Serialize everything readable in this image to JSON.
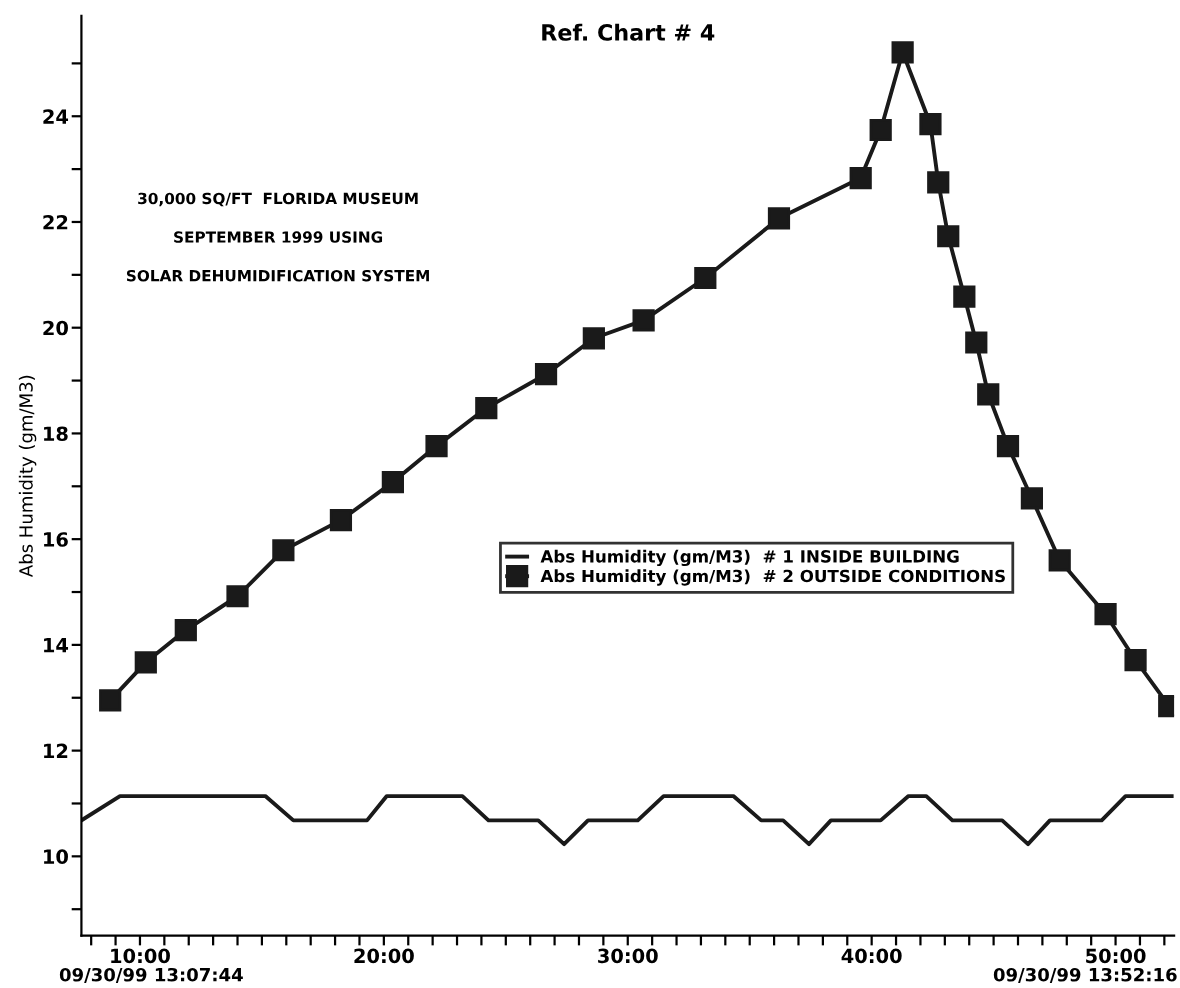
{
  "chart_data": {
    "type": "line",
    "title": "Ref. Chart # 4",
    "ylabel": "Abs Humidity (gm/M3)",
    "annotations": [
      "30,000 SQ/FT  FLORIDA MUSEUM",
      "SEPTEMBER 1999 USING",
      "SOLAR DEHUMIDIFICATION SYSTEM",
      "09/30/99 13:07:44",
      "09/30/99 13:52:16"
    ],
    "series": [
      {
        "name": "Abs Humidity (gm/M3)  # 1 INSIDE BUILDING",
        "color": "#1a1a1a",
        "marker": "none",
        "x": [
          7.6,
          9.18,
          15.14,
          16.29,
          19.31,
          20.12,
          23.22,
          24.29,
          26.33,
          27.39,
          28.37,
          30.41,
          31.47,
          34.33,
          35.47,
          36.37,
          37.43,
          38.33,
          40.37,
          41.51,
          42.24,
          43.31,
          45.35,
          46.41,
          47.31,
          49.43,
          50.41,
          52.3
        ],
        "values": [
          10.68,
          11.14,
          11.14,
          10.68,
          10.68,
          11.14,
          11.14,
          10.68,
          10.68,
          10.23,
          10.68,
          10.68,
          11.14,
          11.14,
          10.68,
          10.68,
          10.23,
          10.68,
          10.68,
          11.14,
          11.14,
          10.68,
          10.68,
          10.23,
          10.68,
          10.68,
          11.14,
          11.14
        ]
      },
      {
        "name": "Abs Humidity (gm/M3)  # 2 OUTSIDE CONDITIONS",
        "color": "#1a1a1a",
        "marker": "square",
        "x": [
          8.78,
          10.24,
          11.88,
          14.0,
          15.88,
          18.24,
          20.37,
          22.16,
          24.2,
          26.65,
          28.61,
          30.65,
          33.18,
          36.2,
          39.55,
          40.37,
          41.27,
          42.41,
          42.73,
          43.14,
          43.8,
          44.29,
          44.78,
          45.59,
          46.57,
          47.71,
          49.59,
          50.82,
          52.2
        ],
        "values": [
          12.95,
          13.67,
          14.28,
          14.92,
          15.79,
          16.36,
          17.08,
          17.76,
          18.48,
          19.12,
          19.8,
          20.14,
          20.94,
          22.07,
          22.83,
          23.74,
          25.21,
          23.85,
          22.75,
          21.73,
          20.59,
          19.72,
          18.74,
          17.76,
          16.77,
          15.6,
          14.58,
          13.71,
          12.84
        ]
      }
    ],
    "xlim": [
      7.6,
      52.4
    ],
    "ylim": [
      8.5,
      25.9
    ],
    "xticks": [
      {
        "value": 8,
        "label": null
      },
      {
        "value": 9,
        "label": null
      },
      {
        "value": 10,
        "label": "10:00"
      },
      {
        "value": 11,
        "label": null
      },
      {
        "value": 12,
        "label": null
      },
      {
        "value": 13,
        "label": null
      },
      {
        "value": 14,
        "label": null
      },
      {
        "value": 15,
        "label": null
      },
      {
        "value": 16,
        "label": null
      },
      {
        "value": 17,
        "label": null
      },
      {
        "value": 18,
        "label": null
      },
      {
        "value": 19,
        "label": null
      },
      {
        "value": 20,
        "label": "20:00"
      },
      {
        "value": 21,
        "label": null
      },
      {
        "value": 22,
        "label": null
      },
      {
        "value": 23,
        "label": null
      },
      {
        "value": 24,
        "label": null
      },
      {
        "value": 25,
        "label": null
      },
      {
        "value": 26,
        "label": null
      },
      {
        "value": 27,
        "label": null
      },
      {
        "value": 28,
        "label": null
      },
      {
        "value": 29,
        "label": null
      },
      {
        "value": 30,
        "label": "30:00"
      },
      {
        "value": 31,
        "label": null
      },
      {
        "value": 32,
        "label": null
      },
      {
        "value": 33,
        "label": null
      },
      {
        "value": 34,
        "label": null
      },
      {
        "value": 35,
        "label": null
      },
      {
        "value": 36,
        "label": null
      },
      {
        "value": 37,
        "label": null
      },
      {
        "value": 38,
        "label": null
      },
      {
        "value": 39,
        "label": null
      },
      {
        "value": 40,
        "label": "40:00"
      },
      {
        "value": 41,
        "label": null
      },
      {
        "value": 42,
        "label": null
      },
      {
        "value": 43,
        "label": null
      },
      {
        "value": 44,
        "label": null
      },
      {
        "value": 45,
        "label": null
      },
      {
        "value": 46,
        "label": null
      },
      {
        "value": 47,
        "label": null
      },
      {
        "value": 48,
        "label": null
      },
      {
        "value": 49,
        "label": null
      },
      {
        "value": 50,
        "label": "50:00"
      },
      {
        "value": 51,
        "label": null
      },
      {
        "value": 52,
        "label": null
      }
    ],
    "yticks": [
      {
        "value": 9,
        "label": null
      },
      10,
      {
        "value": 11,
        "label": null
      },
      12,
      {
        "value": 13,
        "label": null
      },
      14,
      {
        "value": 15,
        "label": null
      },
      16,
      {
        "value": 17,
        "label": null
      },
      18,
      {
        "value": 19,
        "label": null
      },
      20,
      {
        "value": 21,
        "label": null
      },
      22,
      {
        "value": 23,
        "label": null
      },
      24,
      {
        "value": 25,
        "label": null
      }
    ],
    "grid": false,
    "legend": "center right",
    "line_style": "solid"
  }
}
